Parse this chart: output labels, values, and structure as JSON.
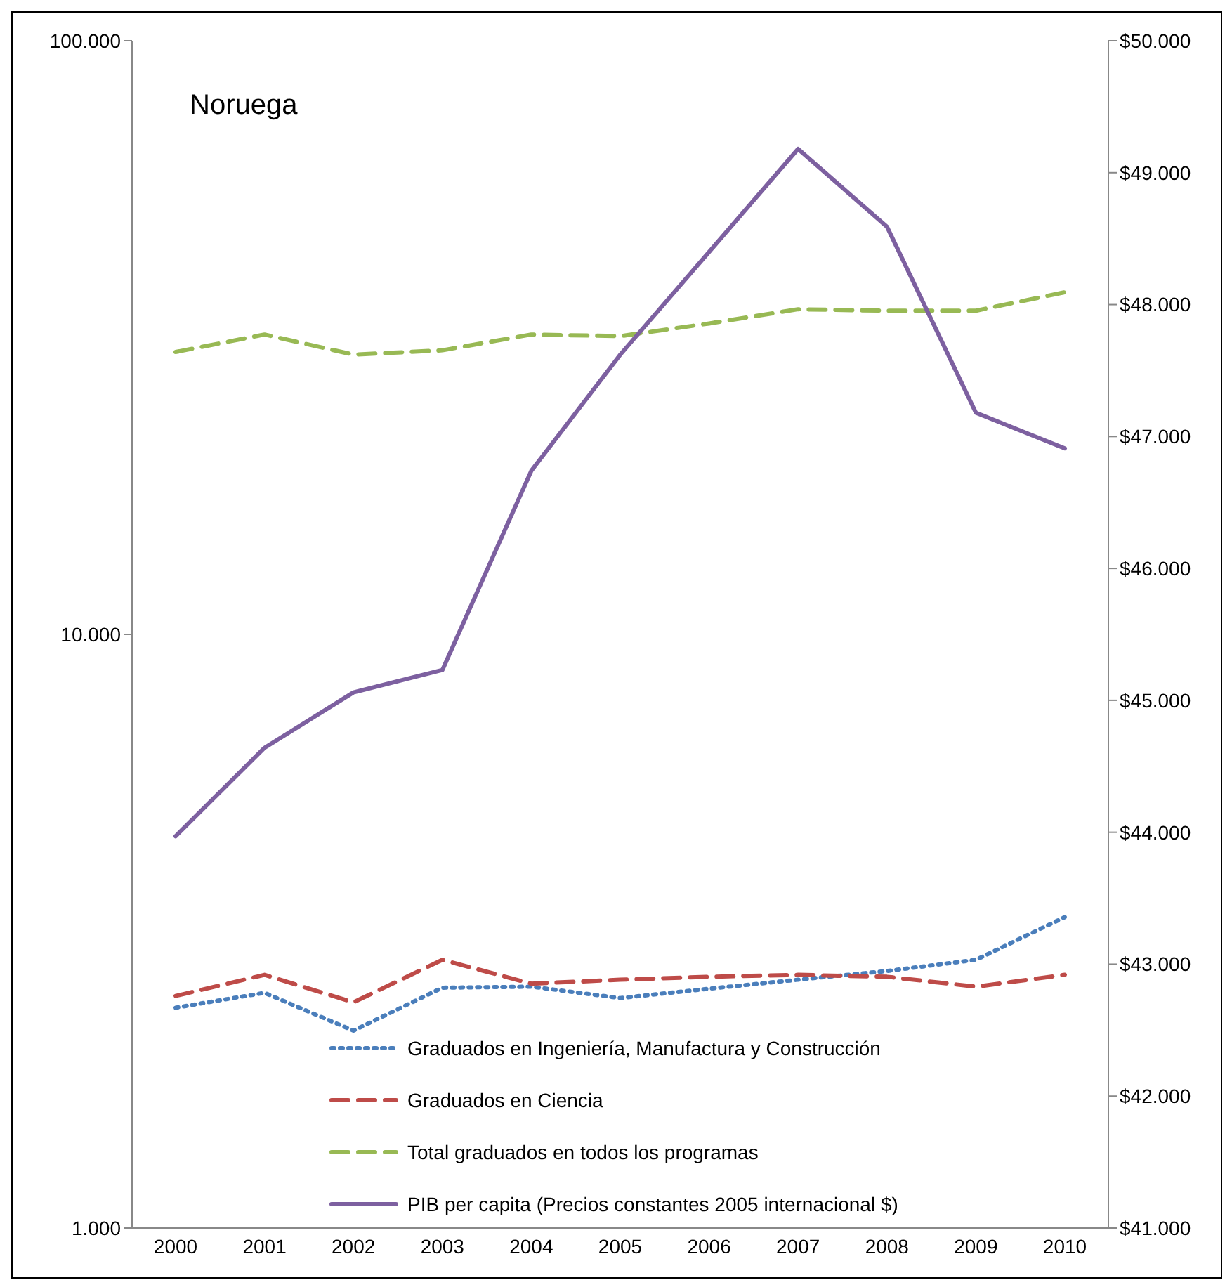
{
  "chart_data": {
    "type": "line",
    "title": "Noruega",
    "categories": [
      "2000",
      "2001",
      "2002",
      "2003",
      "2004",
      "2005",
      "2006",
      "2007",
      "2008",
      "2009",
      "2010"
    ],
    "series": [
      {
        "name": "Graduados en Ingeniería, Manufactura y Construcción",
        "color": "#4a7ebb",
        "line_style": "dotted",
        "values": [
          2350,
          2490,
          2150,
          2540,
          2550,
          2440,
          2530,
          2620,
          2710,
          2830,
          3340
        ]
      },
      {
        "name": "Graduados en Ciencia",
        "color": "#be4b48",
        "line_style": "dashed",
        "values": [
          2460,
          2670,
          2400,
          2830,
          2580,
          2620,
          2650,
          2670,
          2650,
          2550,
          2670
        ]
      },
      {
        "name": "Total graduados en todos los programas",
        "color": "#98b954",
        "line_style": "dashed",
        "values": [
          29900,
          32000,
          29600,
          30100,
          32000,
          31800,
          33400,
          35300,
          35100,
          35100,
          37700
        ]
      },
      {
        "name": "PIB per capita (Precios constantes 2005 internacional $)",
        "color": "#7d60a0",
        "line_style": "solid",
        "axis": "y2",
        "values": [
          43970,
          44640,
          45060,
          45230,
          46740,
          47620,
          48400,
          49180,
          48590,
          47180,
          46910
        ]
      }
    ],
    "log": "y",
    "ylim": [
      1000,
      100000
    ],
    "yticks": [
      {
        "value": 1000,
        "label": "1.000"
      },
      {
        "value": 10000,
        "label": "10.000"
      },
      {
        "value": 100000,
        "label": "100.000"
      }
    ],
    "y2lim": [
      41000,
      50000
    ],
    "y2ticks": [
      {
        "value": 41000,
        "label": "$41.000"
      },
      {
        "value": 42000,
        "label": "$42.000"
      },
      {
        "value": 43000,
        "label": "$43.000"
      },
      {
        "value": 44000,
        "label": "$44.000"
      },
      {
        "value": 45000,
        "label": "$45.000"
      },
      {
        "value": 46000,
        "label": "$46.000"
      },
      {
        "value": 47000,
        "label": "$47.000"
      },
      {
        "value": 48000,
        "label": "$48.000"
      },
      {
        "value": 49000,
        "label": "$49.000"
      },
      {
        "value": 50000,
        "label": "$50.000"
      }
    ],
    "grid": false,
    "legend": "bottom",
    "marker": "none"
  }
}
